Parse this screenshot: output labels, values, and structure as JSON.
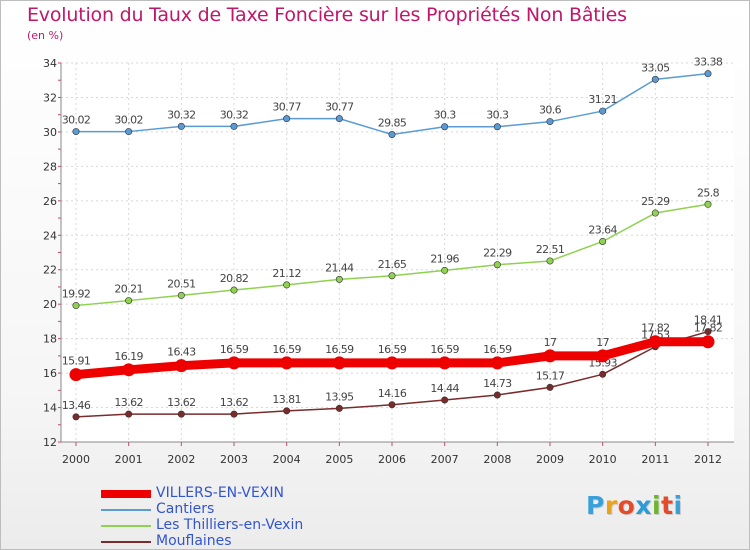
{
  "header": {
    "title": "Evolution du Taux de Taxe Foncière sur les Propriétés Non Bâties",
    "subtitle": "(en %)"
  },
  "logo": {
    "text": "Proxiti",
    "letter_colors": [
      "#3aa0d8",
      "#e8a21c",
      "#e34b2a",
      "#2e9bd6",
      "#6cb52d",
      "#e34b2a",
      "#3aa0d8"
    ]
  },
  "chart_data": {
    "type": "line",
    "x": [
      "2000",
      "2001",
      "2002",
      "2003",
      "2004",
      "2005",
      "2006",
      "2007",
      "2008",
      "2009",
      "2010",
      "2011",
      "2012"
    ],
    "ylim": [
      12,
      34
    ],
    "yticks": [
      12,
      14,
      16,
      18,
      20,
      22,
      24,
      26,
      28,
      30,
      32,
      34
    ],
    "grid": true,
    "legend_position": "bottom-left",
    "series": [
      {
        "name": "VILLERS-EN-VEXIN",
        "color": "#ee0000",
        "values": [
          15.91,
          16.19,
          16.43,
          16.59,
          16.59,
          16.59,
          16.59,
          16.59,
          16.59,
          17,
          17,
          17.82,
          17.82
        ],
        "labels": [
          "15.91",
          "16.19",
          "16.43",
          "16.59",
          "16.59",
          "16.59",
          "16.59",
          "16.59",
          "16.59",
          "17",
          "17",
          "17.82",
          "17.82"
        ]
      },
      {
        "name": "Cantiers",
        "color": "#5b9bd5",
        "values": [
          30.02,
          30.02,
          30.32,
          30.32,
          30.77,
          30.77,
          29.85,
          30.3,
          30.3,
          30.6,
          31.21,
          33.05,
          33.38
        ],
        "labels": [
          "30.02",
          "30.02",
          "30.32",
          "30.32",
          "30.77",
          "30.77",
          "29.85",
          "30.3",
          "30.3",
          "30.6",
          "31.21",
          "33.05",
          "33.38"
        ]
      },
      {
        "name": "Les Thilliers-en-Vexin",
        "color": "#8fd150",
        "values": [
          19.92,
          20.21,
          20.51,
          20.82,
          21.12,
          21.44,
          21.65,
          21.96,
          22.29,
          22.51,
          23.64,
          25.29,
          25.8
        ],
        "labels": [
          "19.92",
          "20.21",
          "20.51",
          "20.82",
          "21.12",
          "21.44",
          "21.65",
          "21.96",
          "22.29",
          "22.51",
          "23.64",
          "25.29",
          "25.8"
        ]
      },
      {
        "name": "Mouflaines",
        "color": "#7a2b2b",
        "values": [
          13.46,
          13.62,
          13.62,
          13.62,
          13.81,
          13.95,
          14.16,
          14.44,
          14.73,
          15.17,
          15.93,
          17.53,
          18.41
        ],
        "labels": [
          "13.46",
          "13.62",
          "13.62",
          "13.62",
          "13.81",
          "13.95",
          "14.16",
          "14.44",
          "14.73",
          "15.17",
          "15.93",
          "17.53",
          "18.41"
        ]
      }
    ]
  }
}
